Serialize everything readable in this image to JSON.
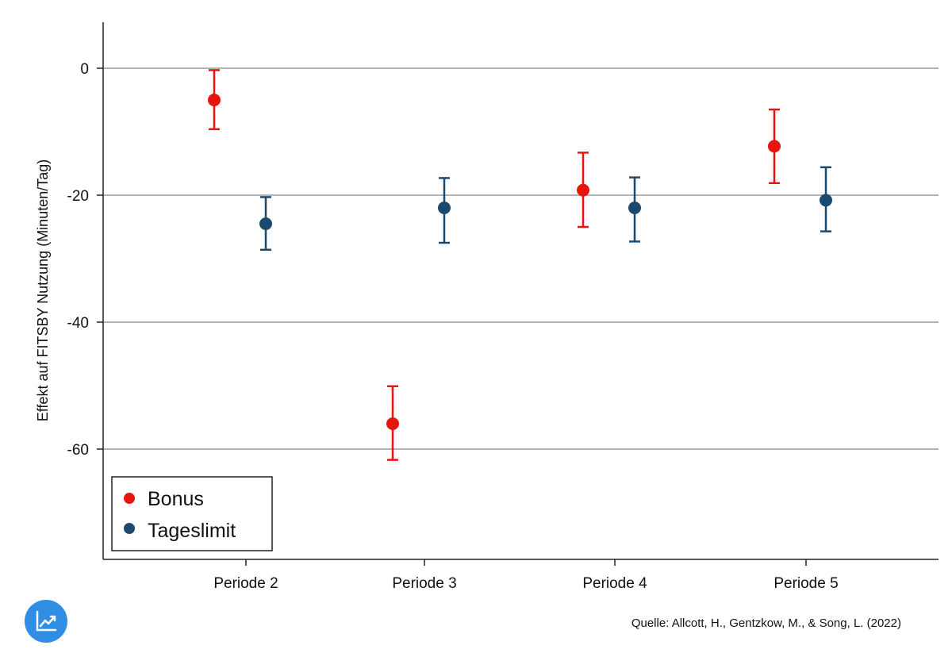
{
  "chart_data": {
    "type": "errorbar",
    "categories": [
      "Periode 2",
      "Periode 3",
      "Periode 4",
      "Periode 5"
    ],
    "ylabel": "Effekt auf FITSBY Nutzung (Minuten/Tag)",
    "ylim": [
      -77,
      7
    ],
    "yticks": [
      0,
      -20,
      -40,
      -60
    ],
    "grid": true,
    "legend_position": "bottom-left",
    "series": [
      {
        "name": "Bonus",
        "color": "#e8150d",
        "values": [
          -5,
          -56,
          -19.2,
          -12.3
        ],
        "lower": [
          -9.6,
          -61.7,
          -25,
          -18.1
        ],
        "upper": [
          -0.3,
          -50.1,
          -13.3,
          -6.5
        ]
      },
      {
        "name": "Tageslimit",
        "color": "#1b4a6e",
        "values": [
          -24.5,
          -22,
          -22,
          -20.8
        ],
        "lower": [
          -28.6,
          -27.5,
          -27.3,
          -25.7
        ],
        "upper": [
          -20.3,
          -17.3,
          -17.2,
          -15.6
        ]
      }
    ]
  },
  "source": "Quelle: Allcott, H., Gentzkow, M., & Song, L. (2022)",
  "logo_icon": "trend-chart-icon"
}
